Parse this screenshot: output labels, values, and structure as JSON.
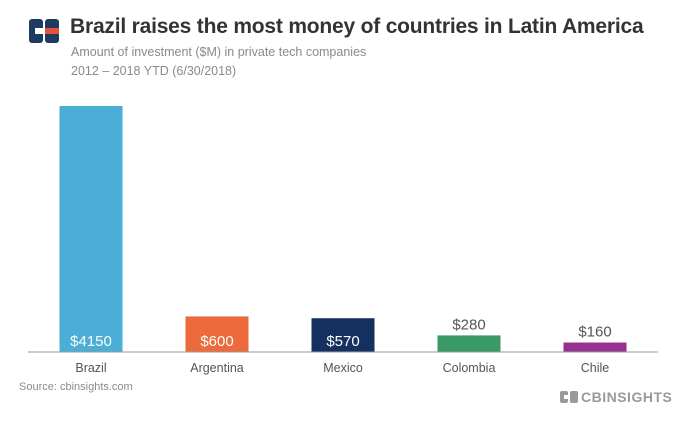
{
  "colors": {
    "logo_primary": "#1f3a5f",
    "logo_accent": "#e4523b",
    "axis": "#9a9a9a",
    "category_label": "#555555",
    "value_label_inside": "#ffffff",
    "value_label_outside": "#555555",
    "brand": "#9a9a9a"
  },
  "source": "Source: cbinsights.com",
  "brand": {
    "text": "CBINSIGHTS"
  },
  "chart_data": {
    "type": "bar",
    "title": "Brazil raises the most money of countries in Latin America",
    "subtitle": "Amount of investment ($M) in private tech companies",
    "date_range": "2012 – 2018 YTD (6/30/2018)",
    "xlabel": "",
    "ylabel": "",
    "ylim": [
      0,
      4150
    ],
    "grid": false,
    "categories": [
      "Brazil",
      "Argentina",
      "Mexico",
      "Colombia",
      "Chile"
    ],
    "values": [
      4150,
      600,
      570,
      280,
      160
    ],
    "value_labels": [
      "$4150",
      "$600",
      "$570",
      "$280",
      "$160"
    ],
    "colors": [
      "#4aaed6",
      "#ec6a3b",
      "#15305e",
      "#3a9a66",
      "#97318f"
    ],
    "label_inside": [
      true,
      true,
      true,
      false,
      false
    ]
  }
}
